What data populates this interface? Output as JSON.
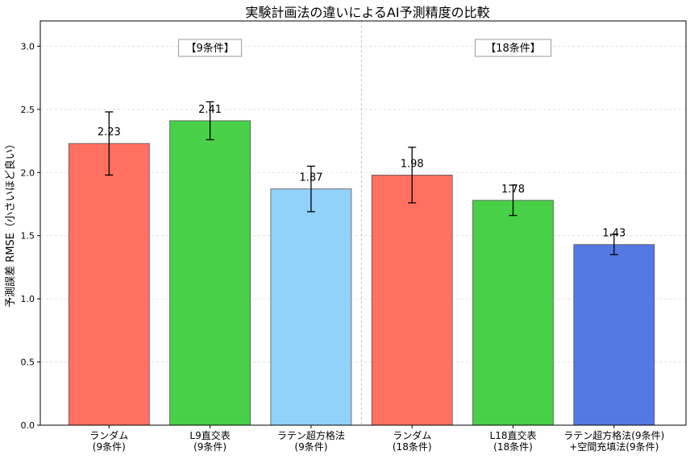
{
  "chart_data": {
    "type": "bar",
    "title": "実験計画法の違いによるAI予測精度の比較",
    "xlabel": "",
    "ylabel": "予測誤差 RMSE（小さいほど良い）",
    "ylim": [
      0,
      3.2
    ],
    "yticks": [
      "0.0",
      "0.5",
      "1.0",
      "1.5",
      "2.0",
      "2.5",
      "3.0"
    ],
    "grid": true,
    "group_labels": [
      "【9条件】",
      "【18条件】"
    ],
    "categories": [
      [
        "ランダム",
        "(9条件)"
      ],
      [
        "L9直交表",
        "(9条件)"
      ],
      [
        "ラテン超方格法",
        "(9条件)"
      ],
      [
        "ランダム",
        "(18条件)"
      ],
      [
        "L18直交表",
        "(18条件)"
      ],
      [
        "ラテン超方格法(9条件)",
        "+空間充填法(9条件)"
      ]
    ],
    "values": [
      2.23,
      2.41,
      1.87,
      1.98,
      1.78,
      1.43
    ],
    "value_labels": [
      "2.23",
      "2.41",
      "1.87",
      "1.98",
      "1.78",
      "1.43"
    ],
    "error": [
      0.25,
      0.15,
      0.18,
      0.22,
      0.12,
      0.08
    ],
    "colors": [
      "#ff7060",
      "#48d048",
      "#92d2fa",
      "#ff7060",
      "#48d048",
      "#5479e2"
    ]
  }
}
